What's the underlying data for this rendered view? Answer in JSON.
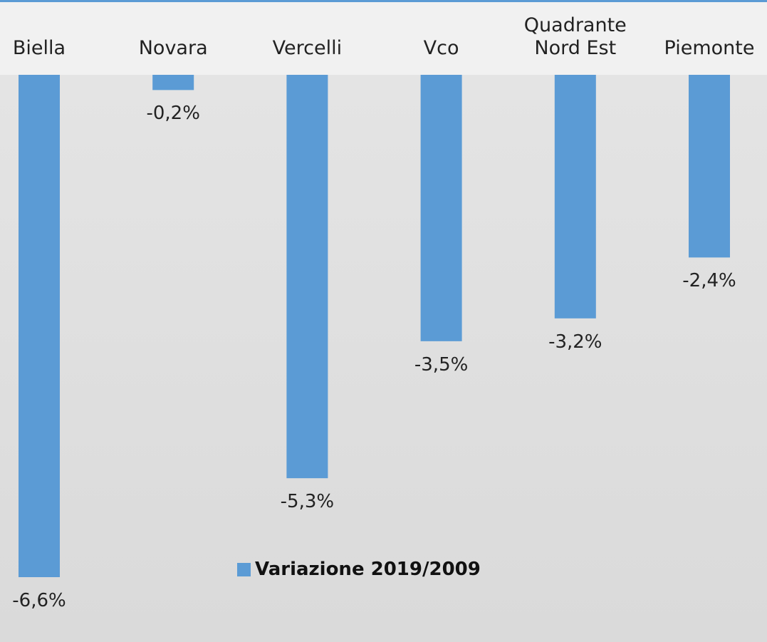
{
  "chart_data": {
    "type": "bar",
    "categories": [
      "Biella",
      "Novara",
      "Vercelli",
      "Vco",
      "Quadrante Nord Est",
      "Piemonte"
    ],
    "series": [
      {
        "name": "Variazione 2019/2009",
        "color": "#5b9bd5",
        "values": [
          -6.6,
          -0.2,
          -5.3,
          -3.5,
          -3.2,
          -2.4
        ],
        "value_labels": [
          "-6,6%",
          "-0,2%",
          "-5,3%",
          "-3,5%",
          "-3,2%",
          "-2,4%"
        ]
      }
    ],
    "legend": "bottom"
  }
}
